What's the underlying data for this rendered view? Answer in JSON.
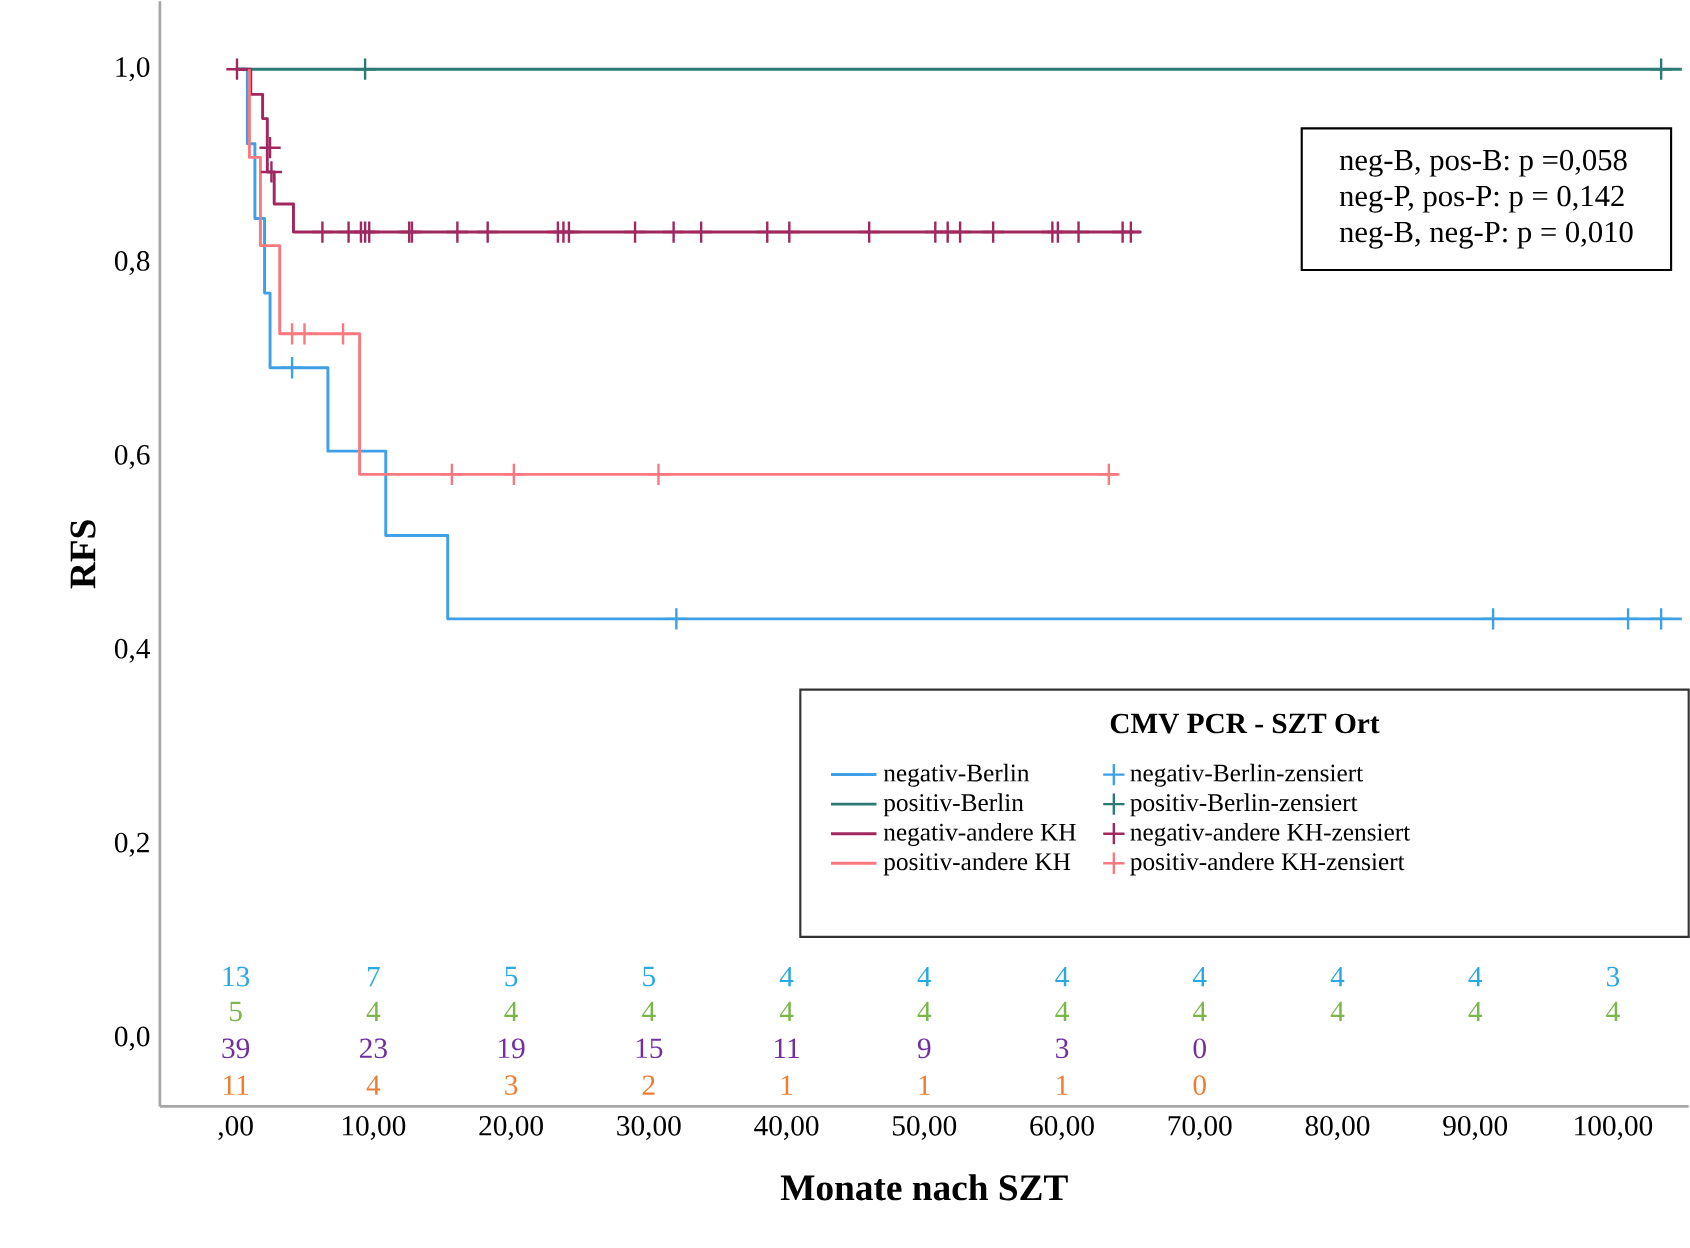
{
  "chart_data": {
    "type": "step",
    "xlabel": "Monate nach SZT",
    "ylabel": "RFS",
    "legend_title": "CMV PCR - SZT Ort",
    "legend": "bottom right",
    "xlim": [
      -5.5,
      105.5
    ],
    "ylim": [
      -0.07,
      1.07
    ],
    "xticks": [
      {
        "value": 0,
        "label": ",00"
      },
      {
        "value": 10,
        "label": "10,00"
      },
      {
        "value": 20,
        "label": "20,00"
      },
      {
        "value": 30,
        "label": "30,00"
      },
      {
        "value": 40,
        "label": "40,00"
      },
      {
        "value": 50,
        "label": "50,00"
      },
      {
        "value": 60,
        "label": "60,00"
      },
      {
        "value": 70,
        "label": "70,00"
      },
      {
        "value": 80,
        "label": "80,00"
      },
      {
        "value": 90,
        "label": "90,00"
      },
      {
        "value": 100,
        "label": "100,00"
      }
    ],
    "yticks": [
      {
        "value": 0,
        "label": "0,0"
      },
      {
        "value": 0.2,
        "label": "0,2"
      },
      {
        "value": 0.4,
        "label": "0,4"
      },
      {
        "value": 0.6,
        "label": "0,6"
      },
      {
        "value": 0.8,
        "label": "0,8"
      },
      {
        "value": 1.0,
        "label": "1,0"
      }
    ],
    "series": [
      {
        "name": "negativ-Berlin",
        "marker": "none",
        "color": "#3ea0e6",
        "x": [
          0,
          0.85,
          1.4,
          2.1,
          2.5,
          6.7,
          10.9,
          15.4,
          105
        ],
        "values": [
          1,
          0.923,
          0.846,
          0.769,
          0.692,
          0.606,
          0.519,
          0.433,
          0.433
        ]
      },
      {
        "name": "negativ-Berlin-zensiert",
        "type": "scatter",
        "marker": "cross",
        "color": "#3ea0e6",
        "x": [
          4.1,
          32.0,
          91.3,
          101.1,
          103.5
        ],
        "values": [
          0.692,
          0.433,
          0.433,
          0.433,
          0.433
        ]
      },
      {
        "name": "positiv-Berlin",
        "marker": "none",
        "color": "#2a7a76",
        "x": [
          0,
          105
        ],
        "values": [
          1,
          1
        ]
      },
      {
        "name": "positiv-Berlin-zensiert",
        "type": "scatter",
        "marker": "cross",
        "color": "#2a7a76",
        "x": [
          9.4,
          103.5
        ],
        "values": [
          1,
          1
        ]
      },
      {
        "name": "negativ-andere KH",
        "marker": "none",
        "color": "#a0285f",
        "x": [
          0,
          1.1,
          1.96,
          2.3,
          2.8,
          4.2,
          65.7
        ],
        "values": [
          1,
          0.974,
          0.949,
          0.894,
          0.861,
          0.832,
          0.832
        ]
      },
      {
        "name": "negativ-andere KH-zensiert",
        "type": "scatter",
        "marker": "cross",
        "color": "#a0285f",
        "x": [
          0.1,
          2.5,
          2.6,
          6.3,
          8.2,
          9.1,
          9.4,
          9.7,
          12.6,
          12.8,
          16.1,
          18.3,
          23.4,
          23.8,
          24.2,
          29.0,
          31.8,
          33.8,
          38.6,
          40.2,
          46.0,
          50.8,
          51.7,
          52.6,
          55.0,
          59.3,
          59.7,
          61.2,
          64.4,
          65.0
        ],
        "values": [
          1,
          0.919,
          0.894,
          0.832,
          0.832,
          0.832,
          0.832,
          0.832,
          0.832,
          0.832,
          0.832,
          0.832,
          0.832,
          0.832,
          0.832,
          0.832,
          0.832,
          0.832,
          0.832,
          0.832,
          0.832,
          0.832,
          0.832,
          0.832,
          0.832,
          0.832,
          0.832,
          0.832,
          0.832,
          0.832
        ]
      },
      {
        "name": "positiv-andere KH",
        "marker": "none",
        "color": "#f87a80",
        "x": [
          1.0,
          1.0,
          1.8,
          3.2,
          9.0,
          64.1
        ],
        "values": [
          1,
          0.909,
          0.818,
          0.727,
          0.582,
          0.582
        ]
      },
      {
        "name": "positiv-andere KH-zensiert",
        "type": "scatter",
        "marker": "cross",
        "color": "#f87a80",
        "x": [
          4.1,
          5.0,
          7.8,
          15.7,
          20.2,
          30.7,
          63.4
        ],
        "values": [
          0.727,
          0.727,
          0.727,
          0.582,
          0.582,
          0.582,
          0.582
        ]
      }
    ],
    "annotations": [
      "neg-B, pos-B: p =0,058",
      "neg-P, pos-P: p = 0,142",
      "neg-B, neg-P: p = 0,010",
      "13",
      "7",
      "5",
      "5",
      "4",
      "4",
      "4",
      "4",
      "4",
      "4",
      "3",
      "5",
      "4",
      "4",
      "4",
      "4",
      "4",
      "4",
      "4",
      "4",
      "4",
      "4",
      "39",
      "23",
      "19",
      "15",
      "11",
      "9",
      "3",
      "0",
      "11",
      "4",
      "3",
      "2",
      "1",
      "1",
      "1",
      "0"
    ]
  }
}
